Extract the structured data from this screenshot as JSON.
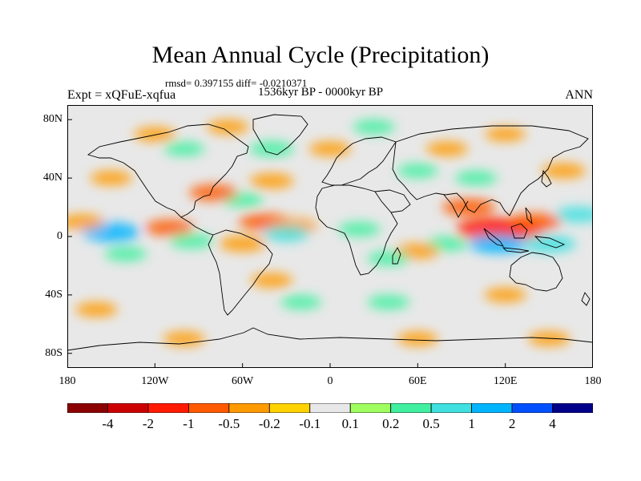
{
  "title": "Mean Annual Cycle (Precipitation)",
  "stats": "rmsd= 0.397155 diff= -0.0210371",
  "period": "1536kyr BP - 0000kyr BP",
  "experiment": "Expt = xQFuE-xqfua",
  "season": "ANN",
  "axes": {
    "y_ticks": [
      "80N",
      "40N",
      "0",
      "40S",
      "80S"
    ],
    "x_ticks": [
      "180",
      "120W",
      "60W",
      "0",
      "60E",
      "120E",
      "180"
    ]
  },
  "colorbar": {
    "colors": [
      "#8b0000",
      "#cd0000",
      "#ff1a00",
      "#ff5a00",
      "#ff9a00",
      "#ffd200",
      "#e8e8e8",
      "#a0ff60",
      "#40f0a0",
      "#40e0e0",
      "#00b4ff",
      "#0050ff",
      "#00008b"
    ],
    "labels": [
      "-4",
      "-2",
      "-1",
      "-0.5",
      "-0.2",
      "-0.1",
      "0.1",
      "0.2",
      "0.5",
      "1",
      "2",
      "4"
    ]
  },
  "chart_data": {
    "type": "heatmap",
    "title": "Mean Annual Cycle (Precipitation)",
    "variable": "Precipitation difference",
    "lon_range": [
      -180,
      180
    ],
    "lat_range": [
      -90,
      90
    ],
    "levels": [
      -4,
      -2,
      -1,
      -0.5,
      -0.2,
      -0.1,
      0.1,
      0.2,
      0.5,
      1,
      2,
      4
    ],
    "patches": [
      {
        "lon": -150,
        "lat": 3,
        "v": 1.0
      },
      {
        "lon": -110,
        "lat": 6,
        "v": -0.6
      },
      {
        "lon": -170,
        "lat": 10,
        "v": -0.4
      },
      {
        "lon": -140,
        "lat": -12,
        "v": 0.3
      },
      {
        "lon": -95,
        "lat": -3,
        "v": 0.4
      },
      {
        "lon": -45,
        "lat": 10,
        "v": -0.7
      },
      {
        "lon": -25,
        "lat": 7,
        "v": -0.5
      },
      {
        "lon": -30,
        "lat": 2,
        "v": 0.5
      },
      {
        "lon": -60,
        "lat": 25,
        "v": 0.3
      },
      {
        "lon": -80,
        "lat": 30,
        "v": -0.6
      },
      {
        "lon": -40,
        "lat": 38,
        "v": -0.4
      },
      {
        "lon": -150,
        "lat": 40,
        "v": -0.3
      },
      {
        "lon": -120,
        "lat": 70,
        "v": -0.3
      },
      {
        "lon": -100,
        "lat": 60,
        "v": 0.25
      },
      {
        "lon": -40,
        "lat": 60,
        "v": 0.4
      },
      {
        "lon": -70,
        "lat": 75,
        "v": -0.3
      },
      {
        "lon": 0,
        "lat": 60,
        "v": -0.3
      },
      {
        "lon": 30,
        "lat": 75,
        "v": 0.3
      },
      {
        "lon": 80,
        "lat": 60,
        "v": -0.3
      },
      {
        "lon": 120,
        "lat": 70,
        "v": -0.25
      },
      {
        "lon": 60,
        "lat": 45,
        "v": 0.25
      },
      {
        "lon": 100,
        "lat": 40,
        "v": 0.3
      },
      {
        "lon": 95,
        "lat": 20,
        "v": -0.8
      },
      {
        "lon": 110,
        "lat": 5,
        "v": -1.5
      },
      {
        "lon": 125,
        "lat": 5,
        "v": -1.2
      },
      {
        "lon": 140,
        "lat": 10,
        "v": -0.8
      },
      {
        "lon": 115,
        "lat": -5,
        "v": 1.0
      },
      {
        "lon": 150,
        "lat": -5,
        "v": 0.8
      },
      {
        "lon": 170,
        "lat": 15,
        "v": 0.5
      },
      {
        "lon": 80,
        "lat": -5,
        "v": 0.3
      },
      {
        "lon": 60,
        "lat": -10,
        "v": -0.4
      },
      {
        "lon": 40,
        "lat": -15,
        "v": 0.3
      },
      {
        "lon": 20,
        "lat": 5,
        "v": 0.3
      },
      {
        "lon": -60,
        "lat": -5,
        "v": -0.5
      },
      {
        "lon": -40,
        "lat": -30,
        "v": -0.3
      },
      {
        "lon": -20,
        "lat": -45,
        "v": 0.25
      },
      {
        "lon": 40,
        "lat": -45,
        "v": 0.3
      },
      {
        "lon": 120,
        "lat": -40,
        "v": -0.3
      },
      {
        "lon": -160,
        "lat": -50,
        "v": -0.3
      },
      {
        "lon": -100,
        "lat": -70,
        "v": -0.3
      },
      {
        "lon": 150,
        "lat": -70,
        "v": -0.3
      },
      {
        "lon": 60,
        "lat": -70,
        "v": -0.25
      },
      {
        "lon": 160,
        "lat": 45,
        "v": -0.4
      }
    ]
  }
}
